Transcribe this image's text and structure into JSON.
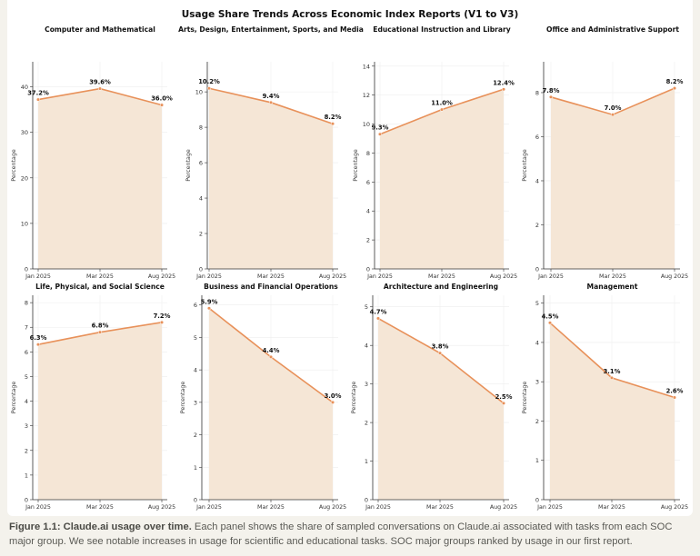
{
  "chart_data": {
    "title": "Usage Share Trends Across Economic Index Reports (V1 to V3)",
    "type": "area",
    "panels": [
      {
        "title": "Computer and Mathematical",
        "x": [
          "Jan 2025",
          "Mar 2025",
          "Aug 2025"
        ],
        "values": [
          37.2,
          39.6,
          36.0
        ],
        "labels": [
          "37.2%",
          "39.6%",
          "36.0%"
        ],
        "ylabel": "Percentage",
        "ylim": [
          0,
          45.5
        ],
        "yticks": [
          0,
          10,
          20,
          30,
          40
        ]
      },
      {
        "title": "Arts, Design, Entertainment, Sports, and Media",
        "x": [
          "Jan 2025",
          "Mar 2025",
          "Aug 2025"
        ],
        "values": [
          10.2,
          9.4,
          8.2
        ],
        "labels": [
          "10.2%",
          "9.4%",
          "8.2%"
        ],
        "ylabel": "Percentage",
        "ylim": [
          0,
          11.7
        ],
        "yticks": [
          0,
          2,
          4,
          6,
          8,
          10
        ]
      },
      {
        "title": "Educational Instruction and Library",
        "x": [
          "Jan 2025",
          "Mar 2025",
          "Aug 2025"
        ],
        "values": [
          9.3,
          11.0,
          12.4
        ],
        "labels": [
          "9.3%",
          "11.0%",
          "12.4%"
        ],
        "ylabel": "Percentage",
        "ylim": [
          0,
          14.3
        ],
        "yticks": [
          0,
          2,
          4,
          6,
          8,
          10,
          12,
          14
        ]
      },
      {
        "title": "Office and Administrative Support",
        "x": [
          "Jan 2025",
          "Mar 2025",
          "Aug 2025"
        ],
        "values": [
          7.8,
          7.0,
          8.2
        ],
        "labels": [
          "7.8%",
          "7.0%",
          "8.2%"
        ],
        "ylabel": "Percentage",
        "ylim": [
          0,
          9.4
        ],
        "yticks": [
          0,
          2,
          4,
          6,
          8
        ]
      },
      {
        "title": "Life, Physical, and Social Science",
        "x": [
          "Jan 2025",
          "Mar 2025",
          "Aug 2025"
        ],
        "values": [
          6.3,
          6.8,
          7.2
        ],
        "labels": [
          "6.3%",
          "6.8%",
          "7.2%"
        ],
        "ylabel": "Percentage",
        "ylim": [
          0,
          8.3
        ],
        "yticks": [
          0,
          1,
          2,
          3,
          4,
          5,
          6,
          7,
          8
        ]
      },
      {
        "title": "Business and Financial Operations",
        "x": [
          "Jan 2025",
          "Mar 2025",
          "Aug 2025"
        ],
        "values": [
          5.9,
          4.4,
          3.0
        ],
        "labels": [
          "5.9%",
          "4.4%",
          "3.0%"
        ],
        "ylabel": "Percentage",
        "ylim": [
          0,
          6.3
        ],
        "yticks": [
          0,
          1,
          2,
          3,
          4,
          5,
          6
        ]
      },
      {
        "title": "Architecture and Engineering",
        "x": [
          "Jan 2025",
          "Mar 2025",
          "Aug 2025"
        ],
        "values": [
          4.7,
          3.8,
          2.5
        ],
        "labels": [
          "4.7%",
          "3.8%",
          "2.5%"
        ],
        "ylabel": "Percentage",
        "ylim": [
          0,
          5.3
        ],
        "yticks": [
          0,
          1,
          2,
          3,
          4,
          5
        ]
      },
      {
        "title": "Management",
        "x": [
          "Jan 2025",
          "Mar 2025",
          "Aug 2025"
        ],
        "values": [
          4.5,
          3.1,
          2.6
        ],
        "labels": [
          "4.5%",
          "3.1%",
          "2.6%"
        ],
        "ylabel": "Percentage",
        "ylim": [
          0,
          5.2
        ],
        "yticks": [
          0,
          1,
          2,
          3,
          4,
          5
        ]
      }
    ],
    "line_color": "#e8915a",
    "fill_color": "#f5e6d6",
    "grid": true
  },
  "caption": {
    "bold": "Figure 1.1: Claude.ai usage over time.",
    "text": " Each panel shows the share of sampled conversations on Claude.ai associated with tasks from each SOC major group. We see notable increases in usage for scientific and educational tasks. SOC major groups ranked by usage in our first report."
  }
}
